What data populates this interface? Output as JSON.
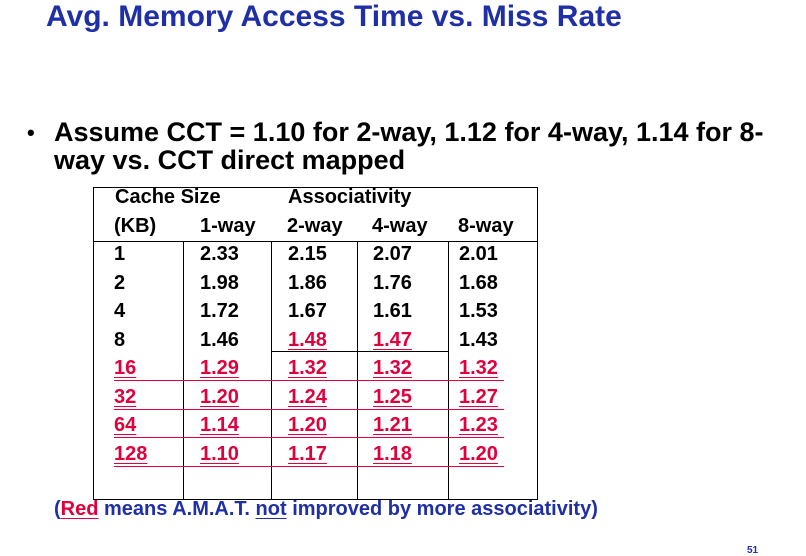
{
  "slide": {
    "title": "Avg. Memory Access Time vs. Miss Rate",
    "bullet": "Assume CCT = 1.10 for 2-way, 1.12 for 4-way, 1.14 for 8-way vs. CCT direct mapped",
    "page_number": "51"
  },
  "table": {
    "group_headers": {
      "cache_size": "Cache Size",
      "associativity": "Associativity"
    },
    "columns": [
      "(KB)",
      "1-way",
      "2-way",
      "4-way",
      "8-way"
    ],
    "rows": [
      {
        "size": "1",
        "values": [
          "2.33",
          "2.15",
          "2.07",
          "2.01"
        ],
        "red": [
          false,
          false,
          false,
          false,
          false
        ]
      },
      {
        "size": "2",
        "values": [
          "1.98",
          "1.86",
          "1.76",
          "1.68"
        ],
        "red": [
          false,
          false,
          false,
          false,
          false
        ]
      },
      {
        "size": "4",
        "values": [
          "1.72",
          "1.67",
          "1.61",
          "1.53"
        ],
        "red": [
          false,
          false,
          false,
          false,
          false
        ]
      },
      {
        "size": "8",
        "values": [
          "1.46",
          "1.48",
          "1.47",
          "1.43"
        ],
        "red": [
          false,
          false,
          true,
          true,
          false
        ]
      },
      {
        "size": "16",
        "values": [
          "1.29",
          "1.32",
          "1.32",
          "1.32"
        ],
        "red": [
          true,
          true,
          true,
          true,
          true
        ]
      },
      {
        "size": "32",
        "values": [
          "1.20",
          "1.24",
          "1.25",
          "1.27"
        ],
        "red": [
          true,
          true,
          true,
          true,
          true
        ]
      },
      {
        "size": "64",
        "values": [
          "1.14",
          "1.20",
          "1.21",
          "1.23"
        ],
        "red": [
          true,
          true,
          true,
          true,
          true
        ]
      },
      {
        "size": "128",
        "values": [
          "1.10",
          "1.17",
          "1.18",
          "1.20"
        ],
        "red": [
          true,
          true,
          true,
          true,
          true
        ]
      }
    ],
    "red_color": "#e0003c",
    "black_color": "#000000"
  },
  "footnote": {
    "open": "(",
    "red_word": "Red",
    "middle": " means A.M.A.T. ",
    "not_word": "not",
    "end": " improved by more associativity)"
  }
}
